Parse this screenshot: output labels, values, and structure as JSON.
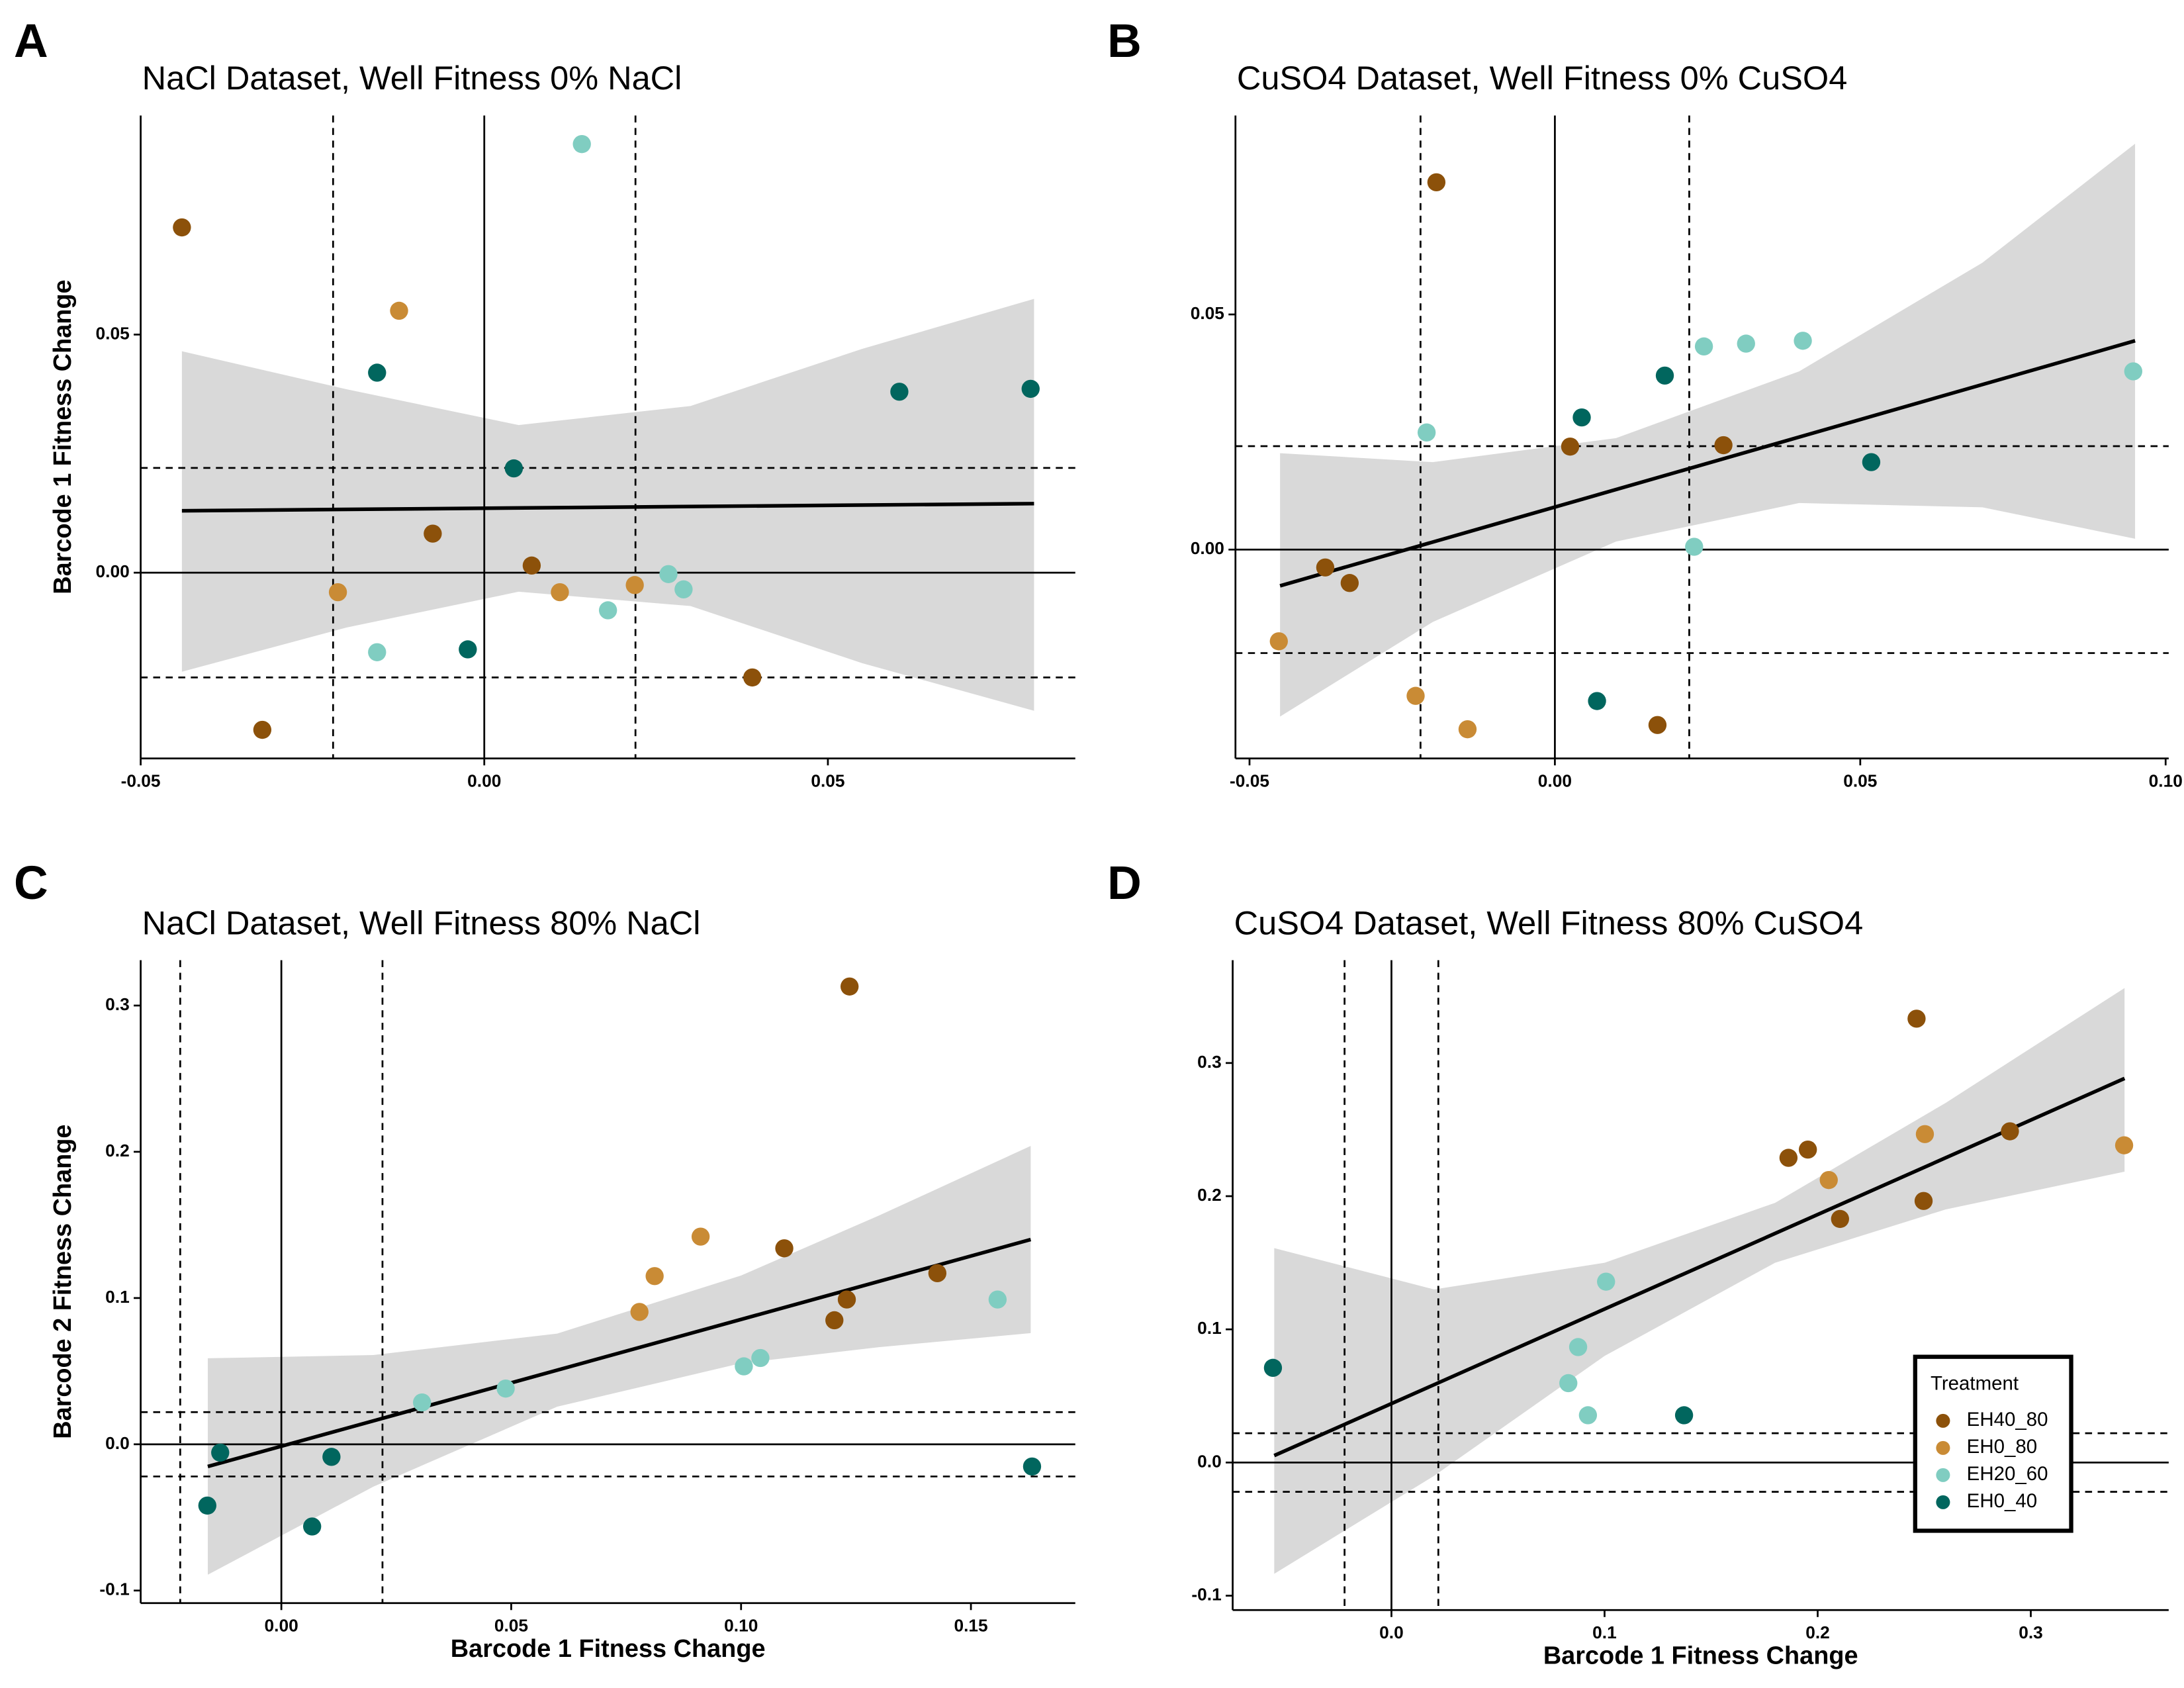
{
  "chart_data": [
    {
      "type": "scatter",
      "panel": "A",
      "title": "NaCl Dataset, Well Fitness 0% NaCl",
      "ylabel": "Barcode 1 Fitness Change",
      "xlim": [
        -0.05,
        0.086
      ],
      "ylim": [
        -0.039,
        0.096
      ],
      "xticks": [
        -0.05,
        {
          "value": 0,
          "label": "0.00"
        },
        0.05
      ],
      "yticks": [
        {
          "value": 0,
          "label": "0.00"
        },
        0.05
      ],
      "vlines": [
        {
          "value": -0.022,
          "dashed": true
        },
        {
          "value": 0,
          "dashed": false
        },
        {
          "value": 0.022,
          "dashed": true
        }
      ],
      "hlines": [
        {
          "value": -0.022,
          "dashed": true
        },
        {
          "value": 0,
          "dashed": false
        },
        {
          "value": 0.022,
          "dashed": true
        }
      ],
      "band": {
        "color": "#d9d9d9",
        "x": [
          -0.044,
          -0.02,
          0.005,
          0.03,
          0.055,
          0.08
        ],
        "lower": [
          -0.0208,
          -0.0115,
          -0.004,
          -0.007,
          -0.019,
          -0.029
        ],
        "upper": [
          0.0465,
          0.0385,
          0.031,
          0.035,
          0.047,
          0.0575
        ]
      },
      "fit": {
        "color": "#000000",
        "x": [
          -0.044,
          0.08
        ],
        "values": [
          0.013,
          0.0145
        ]
      },
      "series": [
        {
          "name": "EH40_80",
          "color": "#8c510a",
          "x": [
            -0.044,
            -0.0323,
            -0.0075,
            0.0069,
            0.039
          ],
          "values": [
            0.0725,
            -0.033,
            0.0082,
            0.0015,
            -0.022
          ]
        },
        {
          "name": "EH0_80",
          "color": "#c98b35",
          "x": [
            -0.0124,
            -0.0213,
            0.011,
            0.0219
          ],
          "values": [
            0.055,
            -0.0041,
            -0.0041,
            -0.0026
          ]
        },
        {
          "name": "EH20_60",
          "color": "#80cdc1",
          "x": [
            0.0142,
            -0.0156,
            0.018,
            0.0268,
            0.029
          ],
          "values": [
            0.09,
            -0.0167,
            -0.0079,
            -0.0003,
            -0.0035
          ]
        },
        {
          "name": "EH0_40",
          "color": "#01665e",
          "x": [
            -0.0156,
            0.0043,
            -0.0024,
            0.0604,
            0.0795
          ],
          "values": [
            0.042,
            0.0219,
            -0.0161,
            0.038,
            0.0386
          ]
        }
      ]
    },
    {
      "type": "scatter",
      "panel": "B",
      "title": "CuSO4 Dataset, Well Fitness 0% CuSO4",
      "xlim": [
        -0.0523,
        0.1005
      ],
      "ylim": [
        -0.0444,
        0.0923
      ],
      "xticks": [
        -0.05,
        {
          "value": 0,
          "label": "0.00"
        },
        0.05,
        {
          "value": 0.1,
          "label": "0.10"
        }
      ],
      "yticks": [
        {
          "value": 0,
          "label": "0.00"
        },
        0.05
      ],
      "vlines": [
        {
          "value": -0.022,
          "dashed": true
        },
        {
          "value": 0,
          "dashed": false
        },
        {
          "value": 0.022,
          "dashed": true
        }
      ],
      "hlines": [
        {
          "value": -0.022,
          "dashed": true
        },
        {
          "value": 0,
          "dashed": false
        },
        {
          "value": 0.022,
          "dashed": true
        }
      ],
      "band": {
        "color": "#d9d9d9",
        "x": [
          -0.045,
          -0.02,
          0.01,
          0.04,
          0.07,
          0.095
        ],
        "lower": [
          -0.0355,
          -0.0154,
          0.0017,
          0.0099,
          0.009,
          0.0023
        ],
        "upper": [
          0.0205,
          0.0186,
          0.0237,
          0.0379,
          0.061,
          0.0863
        ]
      },
      "fit": {
        "color": "#000000",
        "x": [
          -0.045,
          0.095
        ],
        "values": [
          -0.0077,
          0.0444
        ]
      },
      "series": [
        {
          "name": "EH40_80",
          "color": "#8c510a",
          "x": [
            -0.0194,
            -0.0376,
            -0.0336,
            0.0025,
            0.0276,
            0.0168
          ],
          "values": [
            0.0781,
            -0.0038,
            -0.0071,
            0.0219,
            0.0222,
            -0.0373
          ]
        },
        {
          "name": "EH0_80",
          "color": "#c98b35",
          "x": [
            -0.0452,
            -0.0228,
            -0.0143
          ],
          "values": [
            -0.0195,
            -0.0311,
            -0.0382
          ]
        },
        {
          "name": "EH20_60",
          "color": "#80cdc1",
          "x": [
            -0.021,
            0.0244,
            0.0313,
            0.0406,
            0.0947,
            0.0228
          ],
          "values": [
            0.0249,
            0.0432,
            0.0438,
            0.0444,
            0.0379,
            0.0006
          ]
        },
        {
          "name": "EH0_40",
          "color": "#01665e",
          "x": [
            0.0044,
            0.018,
            0.0069,
            0.0518
          ],
          "values": [
            0.0281,
            0.037,
            -0.0322,
            0.0186
          ]
        }
      ]
    },
    {
      "type": "scatter",
      "panel": "C",
      "title": "NaCl Dataset, Well Fitness 80% NaCl",
      "xlabel": "Barcode 1 Fitness Change",
      "ylabel": "Barcode 2 Fitness Change",
      "xlim": [
        -0.0306,
        0.1727
      ],
      "ylim": [
        -0.1086,
        0.331
      ],
      "xticks": [
        {
          "value": 0,
          "label": "0.00"
        },
        0.05,
        {
          "value": 0.1,
          "label": "0.10"
        },
        0.15
      ],
      "yticks": [
        -0.1,
        {
          "value": 0,
          "label": "0.0"
        },
        0.1,
        0.2,
        0.3
      ],
      "vlines": [
        {
          "value": -0.022,
          "dashed": true
        },
        {
          "value": 0,
          "dashed": false
        },
        {
          "value": 0.022,
          "dashed": true
        }
      ],
      "hlines": [
        {
          "value": -0.022,
          "dashed": true
        },
        {
          "value": 0,
          "dashed": false
        },
        {
          "value": 0.022,
          "dashed": true
        }
      ],
      "band": {
        "color": "#d9d9d9",
        "x": [
          -0.016,
          0.02,
          0.06,
          0.1,
          0.13,
          0.163
        ],
        "lower": [
          -0.0892,
          -0.029,
          0.0257,
          0.0554,
          0.0664,
          0.076
        ],
        "upper": [
          0.0588,
          0.061,
          0.0757,
          0.1154,
          0.1564,
          0.204
        ]
      },
      "fit": {
        "color": "#000000",
        "x": [
          -0.016,
          0.163
        ],
        "values": [
          -0.0152,
          0.14
        ]
      },
      "series": [
        {
          "name": "EH40_80",
          "color": "#8c510a",
          "x": [
            0.1236,
            0.1094,
            0.123,
            0.1203,
            0.1427
          ],
          "values": [
            0.313,
            0.134,
            0.099,
            0.0848,
            0.117
          ]
        },
        {
          "name": "EH0_80",
          "color": "#c98b35",
          "x": [
            0.0912,
            0.0812,
            0.0779
          ],
          "values": [
            0.142,
            0.115,
            0.0905
          ]
        },
        {
          "name": "EH20_60",
          "color": "#80cdc1",
          "x": [
            0.0306,
            0.0488,
            0.1006,
            0.1042,
            0.1558
          ],
          "values": [
            0.0286,
            0.0381,
            0.0533,
            0.059,
            0.099
          ]
        },
        {
          "name": "EH0_40",
          "color": "#01665e",
          "x": [
            -0.0161,
            -0.0133,
            0.0067,
            0.0109,
            0.1633
          ],
          "values": [
            -0.0419,
            -0.0057,
            -0.0562,
            -0.0086,
            -0.0152
          ]
        }
      ]
    },
    {
      "type": "scatter",
      "panel": "D",
      "title": "CuSO4 Dataset, Well Fitness 80% CuSO4",
      "xlabel": "Barcode 1 Fitness Change",
      "xlim": [
        -0.0745,
        0.3647
      ],
      "ylim": [
        -0.1108,
        0.3772
      ],
      "xticks": [
        {
          "value": 0,
          "label": "0.0"
        },
        0.1,
        0.2,
        0.3
      ],
      "yticks": [
        -0.1,
        {
          "value": 0,
          "label": "0.0"
        },
        0.1,
        0.2,
        0.3
      ],
      "vlines": [
        {
          "value": -0.022,
          "dashed": true
        },
        {
          "value": 0,
          "dashed": false
        },
        {
          "value": 0.022,
          "dashed": true
        }
      ],
      "hlines": [
        {
          "value": -0.022,
          "dashed": true
        },
        {
          "value": 0,
          "dashed": false
        },
        {
          "value": 0.022,
          "dashed": true
        }
      ],
      "band": {
        "color": "#d9d9d9",
        "x": [
          -0.055,
          0.02,
          0.1,
          0.18,
          0.26,
          0.344
        ],
        "lower": [
          -0.0836,
          -0.01,
          0.08,
          0.15,
          0.19,
          0.2184
        ],
        "upper": [
          0.161,
          0.13,
          0.15,
          0.195,
          0.27,
          0.3563
        ]
      },
      "fit": {
        "color": "#000000",
        "x": [
          -0.055,
          0.344
        ],
        "values": [
          0.0052,
          0.2884
        ]
      },
      "legend": {
        "title": "Treatment",
        "position": "bottom-right"
      },
      "series": [
        {
          "name": "EH40_80",
          "color": "#8c510a",
          "x": [
            0.2464,
            0.1863,
            0.1954,
            0.2105,
            0.2497,
            0.2902
          ],
          "values": [
            0.3333,
            0.2288,
            0.235,
            0.1829,
            0.1964,
            0.2487
          ]
        },
        {
          "name": "EH0_80",
          "color": "#c98b35",
          "x": [
            0.2503,
            0.2052,
            0.3438
          ],
          "values": [
            0.2466,
            0.2121,
            0.2382
          ]
        },
        {
          "name": "EH20_60",
          "color": "#80cdc1",
          "x": [
            0.1007,
            0.0876,
            0.083,
            0.0922
          ],
          "values": [
            0.1358,
            0.0867,
            0.0596,
            0.0355
          ]
        },
        {
          "name": "EH0_40",
          "color": "#01665e",
          "x": [
            -0.0556,
            0.1373
          ],
          "values": [
            0.0711,
            0.0355
          ]
        }
      ]
    }
  ]
}
